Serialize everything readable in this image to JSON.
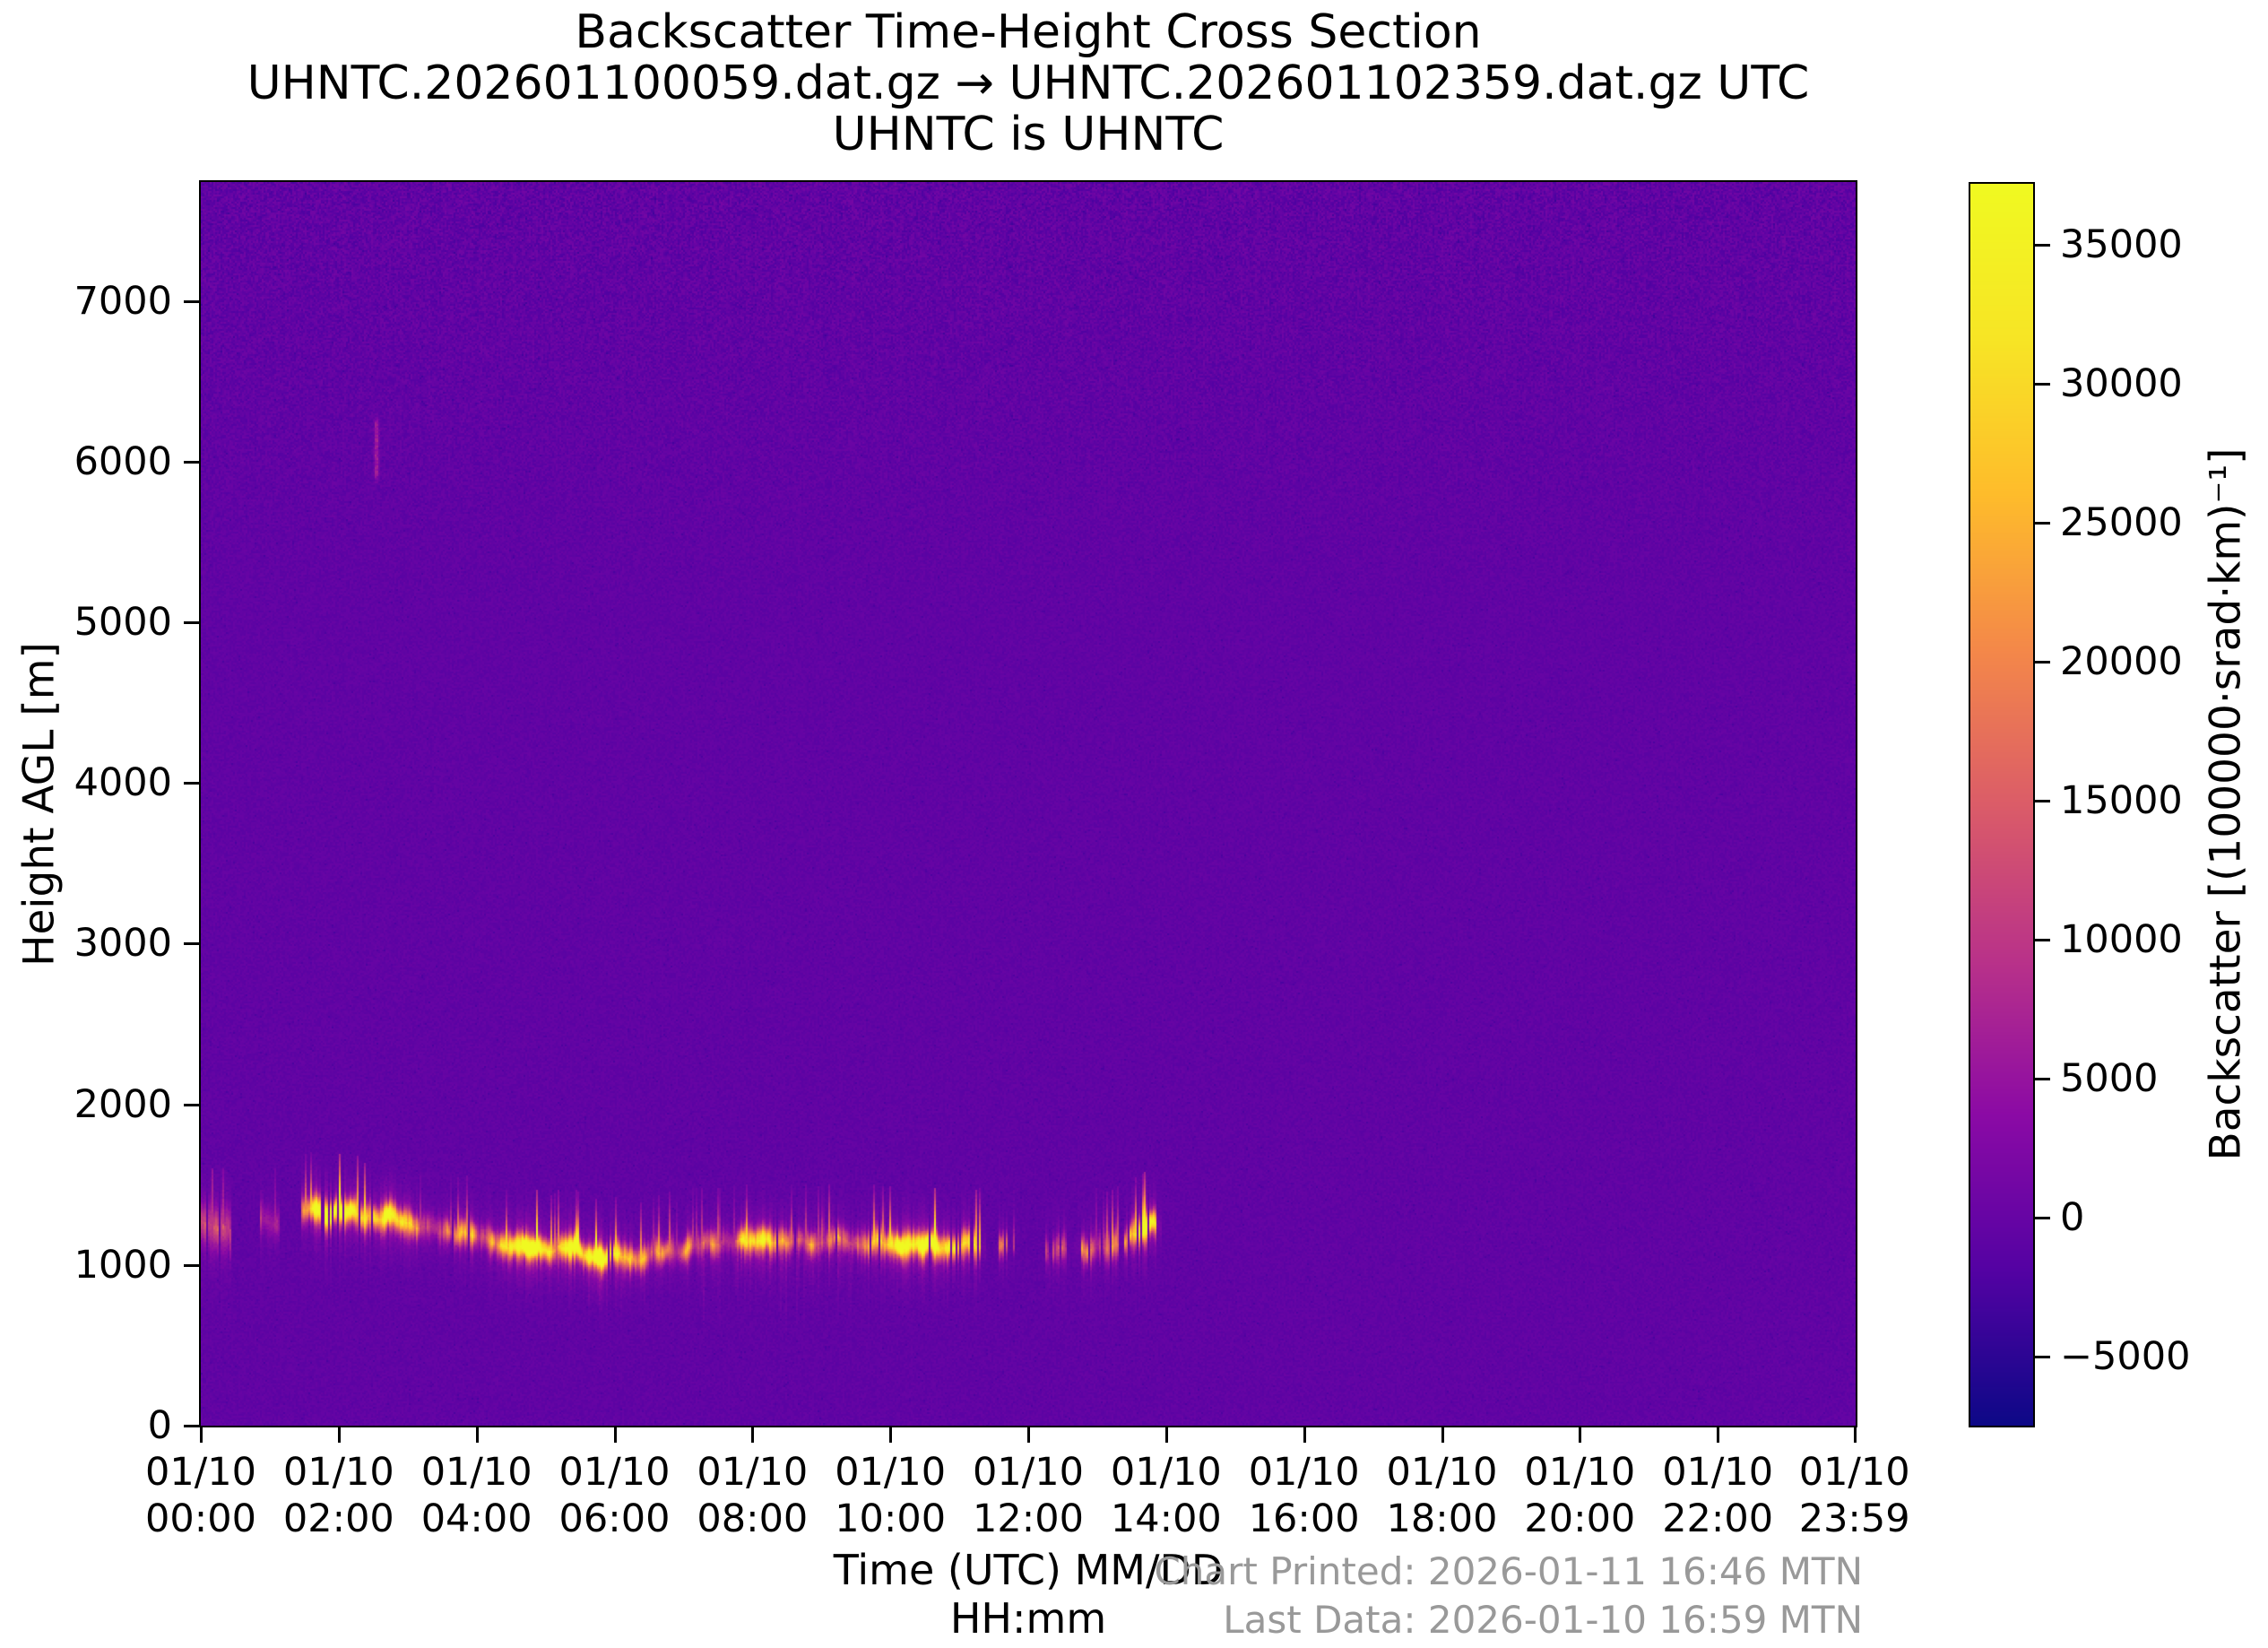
{
  "header": {
    "title": "Backscatter Time-Height Cross Section",
    "subtitle": "UHNTC.202601100059.dat.gz → UHNTC.202601102359.dat.gz UTC",
    "subtitle2": "UHNTC is UHNTC"
  },
  "footer": {
    "chart_printed": "Chart Printed: 2026-01-11 16:46 MTN",
    "last_data": "Last Data: 2026-01-10 16:59 MTN",
    "text_color": "#999999"
  },
  "axes": {
    "y_label": "Height AGL [m]",
    "x_label_line1": "Time (UTC) MM/DD",
    "x_label_line2": "HH:mm",
    "y_ticks": [
      {
        "label": "7000",
        "value": 7000
      },
      {
        "label": "6000",
        "value": 6000
      },
      {
        "label": "5000",
        "value": 5000
      },
      {
        "label": "4000",
        "value": 4000
      },
      {
        "label": "3000",
        "value": 3000
      },
      {
        "label": "2000",
        "value": 2000
      },
      {
        "label": "1000",
        "value": 1000
      },
      {
        "label": "0",
        "value": 0
      }
    ],
    "x_ticks": [
      {
        "date": "01/10",
        "time": "00:00",
        "hour": 0
      },
      {
        "date": "01/10",
        "time": "02:00",
        "hour": 2
      },
      {
        "date": "01/10",
        "time": "04:00",
        "hour": 4
      },
      {
        "date": "01/10",
        "time": "06:00",
        "hour": 6
      },
      {
        "date": "01/10",
        "time": "08:00",
        "hour": 8
      },
      {
        "date": "01/10",
        "time": "10:00",
        "hour": 10
      },
      {
        "date": "01/10",
        "time": "12:00",
        "hour": 12
      },
      {
        "date": "01/10",
        "time": "14:00",
        "hour": 14
      },
      {
        "date": "01/10",
        "time": "16:00",
        "hour": 16
      },
      {
        "date": "01/10",
        "time": "18:00",
        "hour": 18
      },
      {
        "date": "01/10",
        "time": "20:00",
        "hour": 20
      },
      {
        "date": "01/10",
        "time": "22:00",
        "hour": 22
      },
      {
        "date": "01/10",
        "time": "23:59",
        "hour": 23.983
      }
    ]
  },
  "colorbar": {
    "label": "Backscatter [(100000·srad·km)⁻¹]",
    "ticks": [
      {
        "label": "35000",
        "value": 35000
      },
      {
        "label": "30000",
        "value": 30000
      },
      {
        "label": "25000",
        "value": 25000
      },
      {
        "label": "20000",
        "value": 20000
      },
      {
        "label": "15000",
        "value": 15000
      },
      {
        "label": "10000",
        "value": 10000
      },
      {
        "label": "5000",
        "value": 5000
      },
      {
        "label": "0",
        "value": 0
      },
      {
        "label": "−5000",
        "value": -5000
      }
    ]
  },
  "chart_data": {
    "type": "heatmap",
    "title": "Backscatter Time-Height Cross Section",
    "xlabel": "Time (UTC) MM/DD HH:mm",
    "ylabel": "Height AGL [m]",
    "x_range_hours": [
      0,
      24
    ],
    "x_date": "01/10",
    "y_range_m": [
      0,
      7740
    ],
    "value_label": "Backscatter [(100000·srad·km)⁻¹]",
    "vmin": -7500,
    "vmax": 37200,
    "colormap": "plasma",
    "colormap_rgb": [
      [
        13,
        8,
        135
      ],
      [
        84,
        2,
        163
      ],
      [
        139,
        10,
        165
      ],
      [
        185,
        50,
        137
      ],
      [
        219,
        92,
        104
      ],
      [
        244,
        136,
        73
      ],
      [
        254,
        188,
        43
      ],
      [
        247,
        229,
        37
      ],
      [
        240,
        249,
        33
      ]
    ],
    "background_value": -600,
    "background_color_hex": "#5a06a6",
    "noise": {
      "base_amp": 750,
      "top_extra_amp": 1250,
      "top_start_m": 5000
    },
    "aerosol_layer": {
      "description": "Bright backscatter layer (cloud base / aerosol top) from 00:00 to ~14:00 UTC, absent afterwards",
      "profile_t_h": [
        [
          0.0,
          1270
        ],
        [
          0.5,
          1230
        ],
        [
          0.9,
          1255
        ],
        [
          1.3,
          1300
        ],
        [
          1.6,
          1365
        ],
        [
          2.0,
          1370
        ],
        [
          2.4,
          1355
        ],
        [
          2.8,
          1330
        ],
        [
          3.2,
          1290
        ],
        [
          3.6,
          1245
        ],
        [
          4.0,
          1215
        ],
        [
          4.4,
          1180
        ],
        [
          4.8,
          1150
        ],
        [
          5.2,
          1115
        ],
        [
          5.6,
          1085
        ],
        [
          6.0,
          1075
        ],
        [
          6.4,
          1080
        ],
        [
          6.8,
          1100
        ],
        [
          7.2,
          1140
        ],
        [
          7.6,
          1170
        ],
        [
          8.0,
          1180
        ],
        [
          8.4,
          1165
        ],
        [
          8.8,
          1155
        ],
        [
          9.2,
          1160
        ],
        [
          9.6,
          1155
        ],
        [
          10.0,
          1125
        ],
        [
          10.4,
          1130
        ],
        [
          10.8,
          1130
        ],
        [
          11.2,
          1130
        ],
        [
          11.6,
          1110
        ],
        [
          12.0,
          1100
        ],
        [
          12.4,
          1075
        ],
        [
          12.8,
          1090
        ],
        [
          13.2,
          1110
        ],
        [
          13.5,
          1180
        ],
        [
          13.75,
          1210
        ],
        [
          14.0,
          1190
        ]
      ],
      "segments": [
        {
          "t0": 0.0,
          "t1": 0.45,
          "amp": 15000,
          "gap": 0.3,
          "sigma": 80,
          "tail_dn": 260
        },
        {
          "t0": 0.85,
          "t1": 1.15,
          "amp": 26000,
          "gap": 0.15,
          "sigma": 55,
          "tail_dn": 60
        },
        {
          "t0": 1.45,
          "t1": 2.65,
          "amp": 32000,
          "gap": 0.22,
          "sigma": 48,
          "tail_dn": 80
        },
        {
          "t0": 2.65,
          "t1": 10.95,
          "amp": 36000,
          "gap": 0.02,
          "sigma": 46,
          "tail_dn": 70
        },
        {
          "t0": 10.95,
          "t1": 11.4,
          "amp": 28000,
          "gap": 0.45,
          "sigma": 50,
          "tail_dn": 60
        },
        {
          "t0": 11.55,
          "t1": 11.8,
          "amp": 20000,
          "gap": 0.6,
          "sigma": 40,
          "tail_dn": 50
        },
        {
          "t0": 12.25,
          "t1": 13.35,
          "amp": 30000,
          "gap": 0.35,
          "sigma": 52,
          "tail_dn": 90
        },
        {
          "t0": 13.35,
          "t1": 13.95,
          "amp": 30000,
          "gap": 0.3,
          "sigma": 48,
          "tail_dn": 60
        }
      ],
      "virga_streaks": [
        {
          "t0": 0.0,
          "t1": 0.5,
          "depth_m": 420,
          "amp": 7000
        },
        {
          "t0": 4.7,
          "t1": 6.15,
          "depth_m": 420,
          "amp": 4500
        },
        {
          "t0": 7.2,
          "t1": 9.45,
          "depth_m": 560,
          "amp": 5200
        },
        {
          "t0": 12.3,
          "t1": 12.65,
          "depth_m": 300,
          "amp": 3500
        }
      ]
    },
    "elevated_feature": {
      "description": "Thin faint pink streak aloft",
      "t_hour": 2.55,
      "t_sigma": 0.03,
      "h0_m": 5930,
      "h1_m": 6220,
      "amp": 9500
    }
  }
}
